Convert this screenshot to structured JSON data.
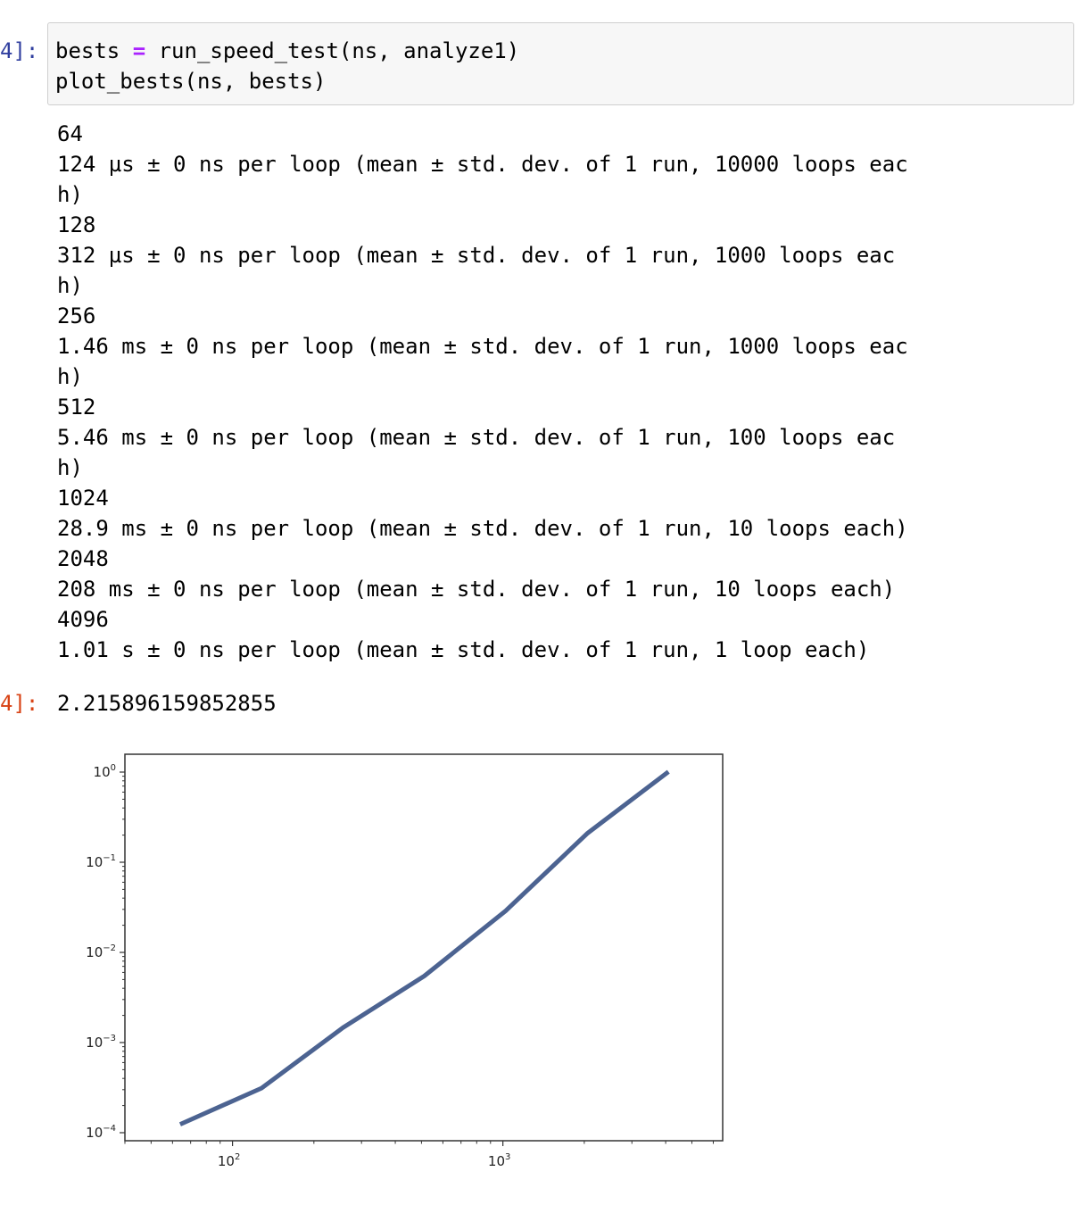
{
  "input_cell": {
    "prompt": "4]:",
    "lines": [
      {
        "var": "bests",
        "op": "=",
        "rest": "run_speed_test(ns, analyze1)"
      },
      {
        "text": "plot_bests(ns, bests)"
      }
    ]
  },
  "stdout_lines": [
    "64",
    "124 µs ± 0 ns per loop (mean ± std. dev. of 1 run, 10000 loops eac",
    "h)",
    "128",
    "312 µs ± 0 ns per loop (mean ± std. dev. of 1 run, 1000 loops eac",
    "h)",
    "256",
    "1.46 ms ± 0 ns per loop (mean ± std. dev. of 1 run, 1000 loops eac",
    "h)",
    "512",
    "5.46 ms ± 0 ns per loop (mean ± std. dev. of 1 run, 100 loops eac",
    "h)",
    "1024",
    "28.9 ms ± 0 ns per loop (mean ± std. dev. of 1 run, 10 loops each)",
    "2048",
    "208 ms ± 0 ns per loop (mean ± std. dev. of 1 run, 10 loops each)",
    "4096",
    "1.01 s ± 0 ns per loop (mean ± std. dev. of 1 run, 1 loop each)"
  ],
  "output_cell": {
    "prompt": "4]:",
    "value": "2.215896159852855"
  },
  "chart_data": {
    "type": "line",
    "x": [
      64,
      128,
      256,
      512,
      1024,
      2048,
      4096
    ],
    "series": [
      {
        "values": [
          0.000124,
          0.000312,
          0.00146,
          0.00546,
          0.0289,
          0.208,
          1.01
        ],
        "color": "#4c6391"
      }
    ],
    "x_scale": "log",
    "y_scale": "log",
    "xlim": [
      40,
      6500
    ],
    "ylim": [
      0.0001,
      1.0
    ],
    "x_ticks": [
      {
        "value": 100,
        "base": "10",
        "exp": "2"
      },
      {
        "value": 1000,
        "base": "10",
        "exp": "3"
      }
    ],
    "y_ticks": [
      {
        "value": 1,
        "base": "10",
        "exp": "0"
      },
      {
        "value": 0.1,
        "base": "10",
        "exp": "−1"
      },
      {
        "value": 0.01,
        "base": "10",
        "exp": "−2"
      },
      {
        "value": 0.001,
        "base": "10",
        "exp": "−3"
      },
      {
        "value": 0.0001,
        "base": "10",
        "exp": "−4"
      }
    ],
    "grid": false,
    "title": "",
    "xlabel": "",
    "ylabel": ""
  }
}
